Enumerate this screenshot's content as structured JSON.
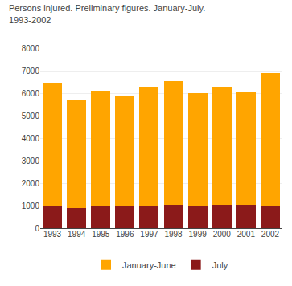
{
  "chart_data": {
    "type": "bar",
    "title": "Persons injured. Preliminary figures. January-July.",
    "subtitle": "1993-2002",
    "categories": [
      "1993",
      "1994",
      "1995",
      "1996",
      "1997",
      "1998",
      "1999",
      "2000",
      "2001",
      "2002"
    ],
    "series": [
      {
        "name": "July",
        "color": "#8B1A1A",
        "values": [
          1000,
          900,
          950,
          950,
          1000,
          1050,
          1000,
          1050,
          1050,
          1000
        ]
      },
      {
        "name": "January-June",
        "color": "#FFA500",
        "values": [
          5450,
          4800,
          5150,
          4950,
          5300,
          5500,
          5000,
          5250,
          5000,
          5900
        ]
      }
    ],
    "stacked": true,
    "ylim": [
      0,
      8000
    ],
    "yticks": [
      0,
      1000,
      2000,
      3000,
      4000,
      5000,
      6000,
      7000,
      8000
    ],
    "grid": true,
    "legend": "bottom"
  }
}
